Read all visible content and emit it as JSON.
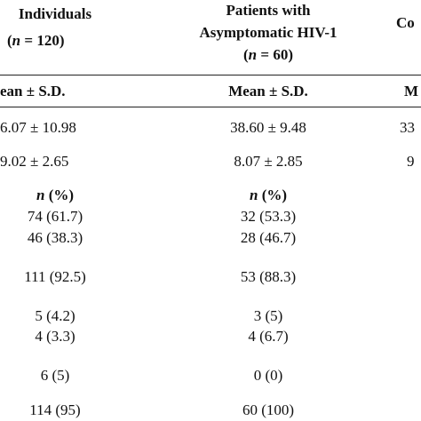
{
  "header": {
    "col1": {
      "line1": "Individuals",
      "n_label": "n",
      "n_value": " = 120)"
    },
    "col2": {
      "line1": "Patients with",
      "line2": "Asymptomatic HIV-1",
      "n_label": "n",
      "n_value": " = 60)"
    },
    "col3": {
      "partial": "Co"
    }
  },
  "subheader": {
    "col1": "ean ± S.D.",
    "col2": "Mean ± S.D.",
    "col3": "M"
  },
  "rows": [
    {
      "c1": "6.07 ± 10.98",
      "c2": "38.60 ± 9.48",
      "c3": "33"
    },
    {
      "c1": "9.02 ± 2.65",
      "c2": "8.07 ± 2.85",
      "c3": "9"
    },
    {
      "c1": "74 (61.7)",
      "c2": "32 (53.3)"
    },
    {
      "c1": "46 (38.3)",
      "c2": "28 (46.7)"
    },
    {
      "c1": "111 (92.5)",
      "c2": "53 (88.3)"
    },
    {
      "c1": "5 (4.2)",
      "c2": "3 (5)"
    },
    {
      "c1": "4 (3.3)",
      "c2": "4 (6.7)"
    },
    {
      "c1": "6 (5)",
      "c2": "0 (0)"
    },
    {
      "c1": "114 (95)",
      "c2": "60 (100)"
    }
  ],
  "percent_header": {
    "n_label": "n",
    "pct": " (%)"
  }
}
